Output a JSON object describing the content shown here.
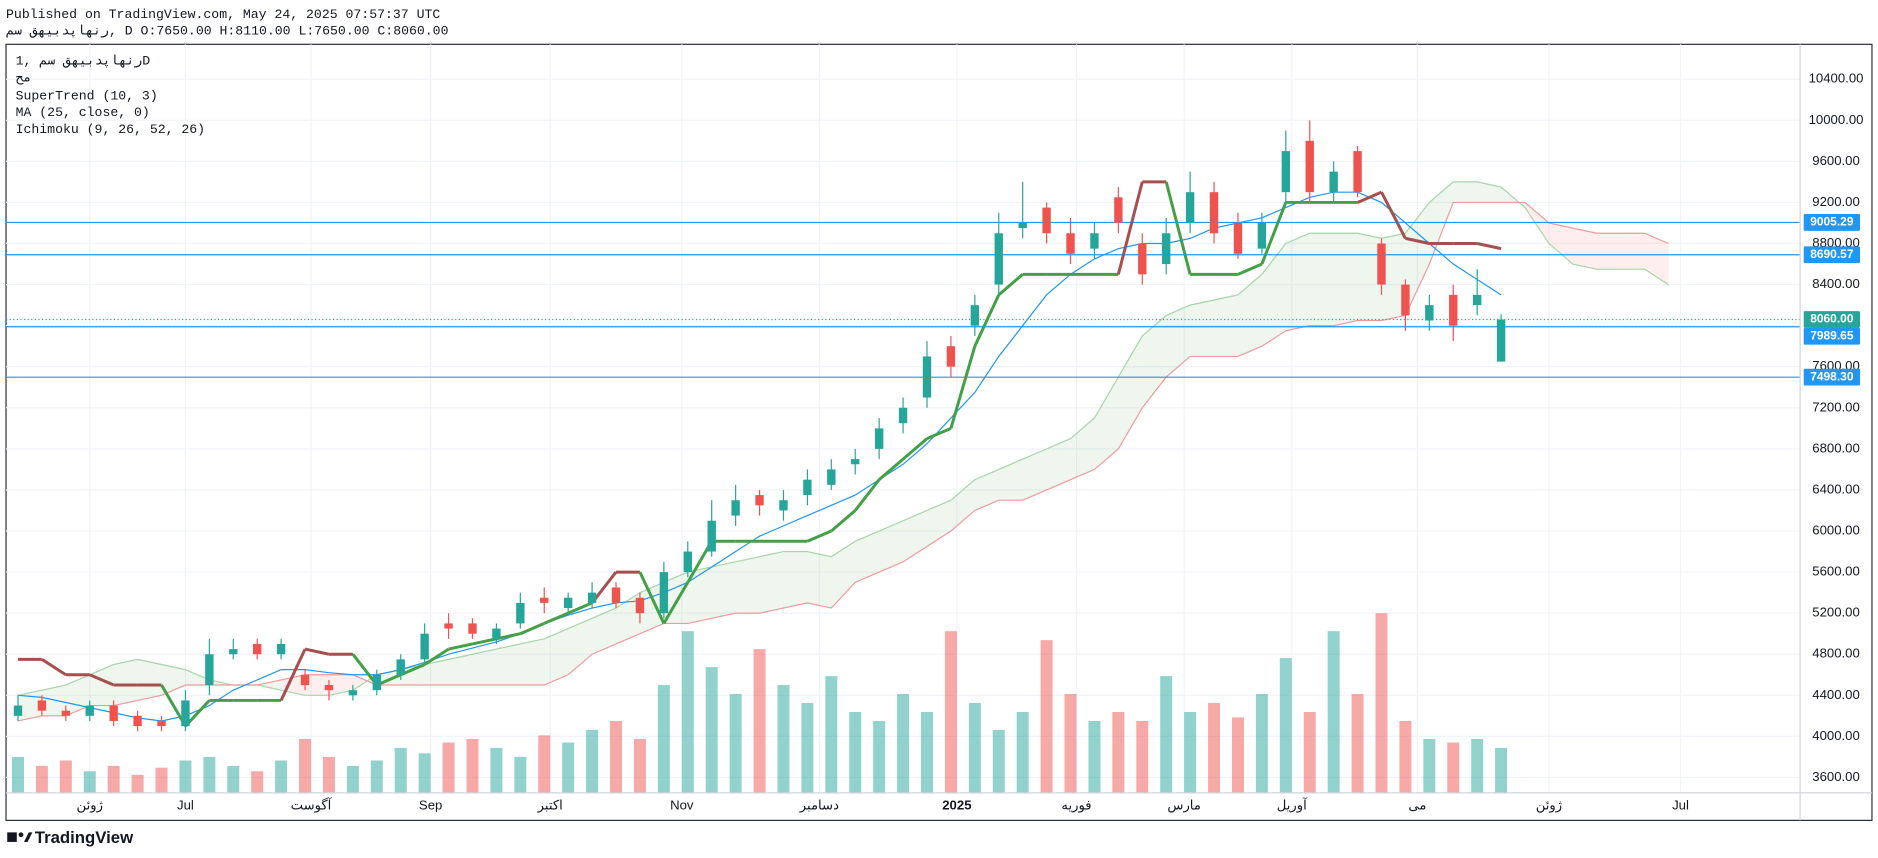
{
  "header": {
    "published": "Published on TradingView.com, May 24, 2025 07:57:37 UTC",
    "symbol_line": "رنهاپدبیهق  سم, D O:7650.00 H:8110.00 L:7650.00 C:8060.00"
  },
  "chart_data": {
    "type": "candlestick",
    "symbol": "رنهاپدبیهق  سم  ,1D",
    "exchange": "مح",
    "indicators": [
      "SuperTrend (10, 3)",
      "MA (25, close, 0)",
      "Ichimoku (9, 26, 52, 26)"
    ],
    "xlim": [
      0,
      300
    ],
    "ylim": [
      3450,
      10740
    ],
    "xticks": [
      {
        "value": 14,
        "label": "ژوئن"
      },
      {
        "value": 30,
        "label": "Jul"
      },
      {
        "value": 51,
        "label": "آگوست"
      },
      {
        "value": 71,
        "label": "Sep"
      },
      {
        "value": 91,
        "label": "اکتبر"
      },
      {
        "value": 113,
        "label": "Nov"
      },
      {
        "value": 136,
        "label": "دسامبر"
      },
      {
        "value": 159,
        "label": "2025"
      },
      {
        "value": 179,
        "label": "فوریه"
      },
      {
        "value": 197,
        "label": "مارس"
      },
      {
        "value": 215,
        "label": "آوریل"
      },
      {
        "value": 236,
        "label": "می"
      },
      {
        "value": 258,
        "label": "ژوئن"
      },
      {
        "value": 280,
        "label": "Jul"
      }
    ],
    "yticks": [
      {
        "value": 3600,
        "label": "3600.00"
      },
      {
        "value": 4000,
        "label": "4000.00"
      },
      {
        "value": 4400,
        "label": "4400.00"
      },
      {
        "value": 4800,
        "label": "4800.00"
      },
      {
        "value": 5200,
        "label": "5200.00"
      },
      {
        "value": 5600,
        "label": "5600.00"
      },
      {
        "value": 6000,
        "label": "6000.00"
      },
      {
        "value": 6400,
        "label": "6400.00"
      },
      {
        "value": 6800,
        "label": "6800.00"
      },
      {
        "value": 7200,
        "label": "7200.00"
      },
      {
        "value": 7600,
        "label": "7600.00"
      },
      {
        "value": 8000,
        "label": "8000.00"
      },
      {
        "value": 8400,
        "label": "8400.00"
      },
      {
        "value": 8800,
        "label": "8800.00"
      },
      {
        "value": 9200,
        "label": "9200.00"
      },
      {
        "value": 9600,
        "label": "9600.00"
      },
      {
        "value": 10000,
        "label": "10000.00"
      },
      {
        "value": 10400,
        "label": "10400.00"
      }
    ],
    "grid": true,
    "up_color": "#26a69a",
    "down_color": "#ef5350",
    "x": [
      2,
      6,
      10,
      14,
      18,
      22,
      26,
      30,
      34,
      38,
      42,
      46,
      50,
      54,
      58,
      62,
      66,
      70,
      74,
      78,
      82,
      86,
      90,
      94,
      98,
      102,
      106,
      110,
      114,
      118,
      122,
      126,
      130,
      134,
      138,
      142,
      146,
      150,
      154,
      158,
      162,
      166,
      170,
      174,
      178,
      182,
      186,
      190,
      194,
      198,
      202,
      206,
      210,
      214,
      218,
      222,
      226,
      230,
      234,
      238,
      242,
      246,
      250
    ],
    "open": [
      4200,
      4350,
      4250,
      4200,
      4300,
      4200,
      4150,
      4100,
      4500,
      4800,
      4900,
      4800,
      4600,
      4500,
      4400,
      4450,
      4600,
      4750,
      5100,
      5100,
      4950,
      5100,
      5350,
      5250,
      5300,
      5450,
      5350,
      5200,
      5600,
      5800,
      6150,
      6350,
      6200,
      6350,
      6450,
      6650,
      6800,
      7050,
      7300,
      7800,
      8000,
      8400,
      8950,
      9150,
      8900,
      8750,
      9250,
      8800,
      8600,
      9000,
      9300,
      9000,
      8750,
      9300,
      9800,
      9300,
      9700,
      8800,
      8400,
      8050,
      8300,
      8200,
      7650
    ],
    "high": [
      4400,
      4400,
      4300,
      4350,
      4350,
      4250,
      4200,
      4450,
      4950,
      4950,
      4950,
      4950,
      4650,
      4550,
      4500,
      4650,
      4800,
      5100,
      5200,
      5150,
      5100,
      5400,
      5450,
      5400,
      5500,
      5500,
      5400,
      5700,
      5900,
      6300,
      6450,
      6400,
      6400,
      6600,
      6700,
      6800,
      7100,
      7300,
      7850,
      7900,
      8300,
      9100,
      9400,
      9200,
      9050,
      9000,
      9350,
      8900,
      9050,
      9500,
      9400,
      9100,
      9100,
      9900,
      10000,
      9600,
      9750,
      8850,
      8450,
      8300,
      8400,
      8550,
      8110
    ],
    "low": [
      4150,
      4200,
      4150,
      4150,
      4100,
      4050,
      4050,
      4050,
      4400,
      4750,
      4750,
      4750,
      4450,
      4350,
      4350,
      4400,
      4550,
      4700,
      4950,
      4950,
      4900,
      5050,
      5200,
      5200,
      5250,
      5250,
      5100,
      5150,
      5550,
      5750,
      6050,
      6150,
      6100,
      6250,
      6400,
      6550,
      6700,
      6950,
      7200,
      7500,
      7900,
      8300,
      8850,
      8800,
      8600,
      8650,
      8900,
      8400,
      8500,
      8900,
      8800,
      8650,
      8700,
      9200,
      9200,
      9200,
      9250,
      8300,
      7950,
      7950,
      7850,
      8100,
      7650
    ],
    "close": [
      4300,
      4250,
      4200,
      4300,
      4150,
      4100,
      4100,
      4350,
      4800,
      4850,
      4800,
      4900,
      4500,
      4450,
      4450,
      4600,
      4750,
      5000,
      5050,
      5000,
      5050,
      5300,
      5300,
      5350,
      5400,
      5300,
      5200,
      5600,
      5800,
      6100,
      6300,
      6250,
      6300,
      6500,
      6600,
      6700,
      7000,
      7200,
      7700,
      7600,
      8200,
      8900,
      9000,
      8900,
      8700,
      8900,
      9000,
      8500,
      8900,
      9300,
      8900,
      8700,
      9000,
      9700,
      9300,
      9500,
      9300,
      8400,
      8100,
      8200,
      8000,
      8300,
      8060
    ],
    "volume": [
      20,
      15,
      18,
      12,
      15,
      10,
      14,
      18,
      20,
      15,
      12,
      18,
      30,
      20,
      15,
      18,
      25,
      22,
      28,
      30,
      25,
      20,
      32,
      28,
      35,
      40,
      30,
      60,
      90,
      70,
      55,
      80,
      60,
      50,
      65,
      45,
      40,
      55,
      45,
      90,
      50,
      35,
      45,
      85,
      55,
      40,
      45,
      40,
      65,
      45,
      50,
      42,
      55,
      75,
      45,
      90,
      55,
      100,
      40,
      30,
      28,
      30,
      25
    ],
    "ma": {
      "color": "#2196f3",
      "values": [
        4400,
        4380,
        4330,
        4280,
        4230,
        4180,
        4150,
        4200,
        4300,
        4450,
        4550,
        4650,
        4650,
        4620,
        4600,
        4600,
        4650,
        4720,
        4800,
        4860,
        4920,
        5000,
        5100,
        5180,
        5250,
        5300,
        5320,
        5400,
        5500,
        5650,
        5800,
        5950,
        6050,
        6150,
        6250,
        6350,
        6500,
        6650,
        6850,
        7100,
        7350,
        7700,
        8000,
        8300,
        8500,
        8650,
        8750,
        8800,
        8800,
        8850,
        8950,
        9000,
        9050,
        9150,
        9250,
        9300,
        9300,
        9200,
        9000,
        8800,
        8600,
        8450,
        8300
      ]
    },
    "supertrend": {
      "up_color": "#43a047",
      "down_color": "#a5504f",
      "values": [
        4750,
        4750,
        4600,
        4600,
        4500,
        4500,
        4500,
        4100,
        4350,
        4350,
        4350,
        4350,
        4850,
        4800,
        4800,
        4500,
        4600,
        4700,
        4850,
        4900,
        4950,
        5000,
        5100,
        5200,
        5300,
        5600,
        5600,
        5100,
        5500,
        5900,
        5900,
        5900,
        5900,
        5900,
        6000,
        6200,
        6500,
        6700,
        6900,
        7000,
        7800,
        8300,
        8500,
        8500,
        8500,
        8500,
        8500,
        9400,
        9400,
        8500,
        8500,
        8500,
        8600,
        9200,
        9200,
        9200,
        9200,
        9300,
        8850,
        8800,
        8800,
        8800,
        8750
      ]
    },
    "ichimoku": {
      "up_color": "#43a047",
      "down_color": "#f44336",
      "x": [
        2,
        6,
        10,
        14,
        18,
        22,
        26,
        30,
        34,
        38,
        42,
        46,
        50,
        54,
        58,
        62,
        66,
        70,
        74,
        78,
        82,
        86,
        90,
        94,
        98,
        102,
        106,
        110,
        114,
        118,
        122,
        126,
        130,
        134,
        138,
        142,
        146,
        150,
        154,
        158,
        162,
        166,
        170,
        174,
        178,
        182,
        186,
        190,
        194,
        198,
        202,
        206,
        210,
        214,
        218,
        222,
        226,
        230,
        234,
        238,
        242,
        246,
        250,
        254,
        258,
        262,
        266,
        270,
        274,
        278
      ],
      "span_a": [
        4400,
        4450,
        4500,
        4600,
        4700,
        4750,
        4700,
        4650,
        4550,
        4500,
        4500,
        4450,
        4400,
        4400,
        4450,
        4600,
        4650,
        4700,
        4750,
        4800,
        4850,
        4900,
        4950,
        5050,
        5150,
        5250,
        5400,
        5500,
        5600,
        5650,
        5700,
        5750,
        5800,
        5800,
        5750,
        5900,
        6000,
        6100,
        6200,
        6300,
        6500,
        6600,
        6700,
        6800,
        6900,
        7100,
        7500,
        7900,
        8100,
        8200,
        8250,
        8300,
        8500,
        8800,
        8900,
        8900,
        8900,
        8850,
        8900,
        9200,
        9400,
        9400,
        9350,
        9150,
        8800,
        8600,
        8550,
        8550,
        8550,
        8400
      ],
      "span_b": [
        4150,
        4200,
        4200,
        4300,
        4300,
        4350,
        4400,
        4500,
        4500,
        4500,
        4500,
        4550,
        4600,
        4600,
        4600,
        4500,
        4500,
        4500,
        4500,
        4500,
        4500,
        4500,
        4500,
        4600,
        4800,
        4900,
        5000,
        5100,
        5100,
        5150,
        5200,
        5200,
        5250,
        5300,
        5250,
        5500,
        5600,
        5700,
        5850,
        6000,
        6200,
        6300,
        6300,
        6400,
        6500,
        6600,
        6800,
        7200,
        7500,
        7700,
        7700,
        7700,
        7800,
        7950,
        8000,
        8000,
        8050,
        8050,
        8100,
        8600,
        9200,
        9200,
        9200,
        9200,
        9000,
        8950,
        8900,
        8900,
        8900,
        8800
      ]
    },
    "levels": {
      "color": "#2196f3",
      "items": [
        {
          "value": 9005.29,
          "label": "9005.29"
        },
        {
          "value": 8690.57,
          "label": "8690.57"
        },
        {
          "value": 7989.65,
          "label": "7989.65"
        },
        {
          "value": 7498.3,
          "label": "7498.30"
        }
      ]
    },
    "last_price": {
      "value": 8060,
      "label": "8060.00",
      "color": "#26a69a"
    }
  },
  "footer": {
    "brand": "TradingView"
  }
}
